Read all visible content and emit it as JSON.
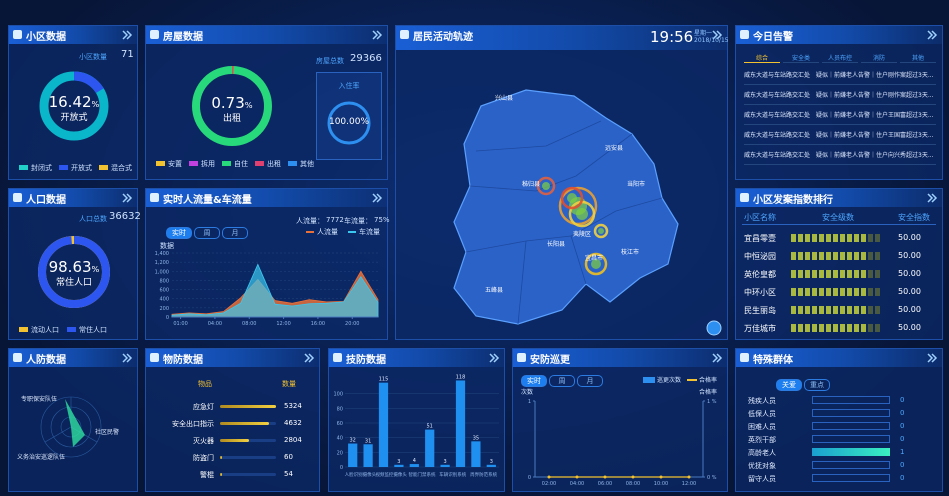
{
  "community": {
    "title": "小区数据",
    "count_label": "小区数量",
    "count": 71,
    "rate": 16.42,
    "rate_unit": "%",
    "rate_caption": "开放式",
    "legend": [
      "封闭式",
      "开放式",
      "混合式"
    ]
  },
  "house": {
    "title": "房屋数据",
    "total_label": "房屋总数",
    "total": 29366,
    "rate": 0.73,
    "rate_unit": "%",
    "rate_caption": "出租",
    "occupancy_label": "入住率",
    "occupancy": {
      "value": 100,
      "label": "100.00%"
    },
    "legend": [
      "安置",
      "拆用",
      "自住",
      "出租",
      "其他"
    ]
  },
  "population": {
    "title": "人口数据",
    "total_label": "人口总数",
    "total": 36632,
    "rate": 98.63,
    "rate_unit": "%",
    "rate_caption": "常住人口",
    "legend": [
      "流动人口",
      "常住人口"
    ]
  },
  "flow": {
    "title": "实时人流量&车流量",
    "people_label": "人流量：",
    "people": 7772,
    "car_label": "车流量：",
    "car": {
      "value": 75,
      "label": "75%"
    },
    "tabs": [
      "实时",
      "周",
      "月"
    ],
    "axis_label": "数据",
    "x": [
      0,
      2,
      4,
      6,
      8,
      10,
      12,
      14,
      16,
      18,
      20,
      22,
      24
    ],
    "xlim": [
      0,
      24
    ],
    "xticks": [
      {
        "value": 1,
        "label": "01:00"
      },
      {
        "value": 5,
        "label": "04:00"
      },
      {
        "value": 9,
        "label": "08:00"
      },
      {
        "value": 13,
        "label": "12:00"
      },
      {
        "value": 17,
        "label": "16:00"
      },
      {
        "value": 21,
        "label": "20:00"
      }
    ],
    "ylim": [
      0,
      1400
    ],
    "yticks": [
      0,
      200,
      400,
      600,
      800,
      {
        "value": 1000,
        "label": "1,000"
      },
      {
        "value": 1200,
        "label": "1,200"
      },
      {
        "value": 1400,
        "label": "1,400"
      }
    ],
    "series": [
      {
        "name": "人流量",
        "color": "#e8703a",
        "values": [
          60,
          90,
          70,
          120,
          420,
          820,
          360,
          300,
          380,
          330,
          340,
          1000,
          380
        ]
      },
      {
        "name": "车流量",
        "color": "#3ac8f0",
        "values": [
          40,
          70,
          50,
          90,
          300,
          1150,
          280,
          240,
          290,
          300,
          330,
          880,
          320
        ]
      }
    ]
  },
  "map": {
    "title": "居民活动轨迹",
    "time": "19:56",
    "weekday": "星期一",
    "date": "2018/10/15",
    "places": [
      "兴山县",
      "远安县",
      "秭归县",
      "当阳市",
      "夷陵区",
      "长阳县",
      "宜昌市",
      "枝江市",
      "五峰县"
    ]
  },
  "alarm": {
    "title": "今日告警",
    "tabs": [
      "综合",
      "安全类",
      "人员布控",
      "消防",
      "其他"
    ],
    "rows": [
      "威东大道与车站路交汇处　疑似｜前嫌老人告警｜住户刚作案超过3天...",
      "威东大道与车站路交汇处　疑似｜前嫌老人告警｜住户刚作案超过3天...",
      "威东大道与车站路交汇处　疑似｜前嫌老人告警｜住户王国富超过3天...",
      "威东大道与车站路交汇处　疑似｜前嫌老人告警｜住户王国富超过3天...",
      "威东大道与车站路交汇处　疑似｜前嫌老人告警｜住户向兴秀超过3天..."
    ]
  },
  "ranking": {
    "title": "小区发案指数排行",
    "headers": [
      "小区名称",
      "安全级数",
      "安全指数"
    ],
    "rows": [
      {
        "name": "宜昌零壹",
        "index": {
          "value": 50,
          "label": "50.00"
        }
      },
      {
        "name": "中恒泌园",
        "index": {
          "value": 50,
          "label": "50.00"
        }
      },
      {
        "name": "英伦皇都",
        "index": {
          "value": 50,
          "label": "50.00"
        }
      },
      {
        "name": "中环小区",
        "index": {
          "value": 50,
          "label": "50.00"
        }
      },
      {
        "name": "民生丽岛",
        "index": {
          "value": 50,
          "label": "50.00"
        }
      },
      {
        "name": "万佳城市",
        "index": {
          "value": 50,
          "label": "50.00"
        }
      }
    ]
  },
  "civil": {
    "title": "人防数据",
    "labels": [
      "专职保安队伍",
      "社区民警",
      "义务治安巡逻队伍"
    ]
  },
  "material": {
    "title": "物防数据",
    "headers": [
      "物品",
      "数量"
    ],
    "rows": [
      {
        "name": "应急灯",
        "value": 5324
      },
      {
        "name": "安全出口指示",
        "value": 4632
      },
      {
        "name": "灭火器",
        "value": 2804
      },
      {
        "name": "防盗门",
        "value": 60
      },
      {
        "name": "警棍",
        "value": 54
      }
    ]
  },
  "tech": {
    "title": "技防数据",
    "categories": [
      "人脸识别摄像头",
      "视频监控摄像头",
      "智能门禁系统",
      "车辆识别系统",
      "周界防范系统"
    ],
    "values": [
      32,
      31,
      115,
      3,
      4,
      51,
      3,
      118,
      35,
      3
    ],
    "ylim": [
      0,
      120
    ],
    "yticks": [
      0,
      20,
      40,
      60,
      80,
      100
    ],
    "color": "#1f8ff0"
  },
  "patrol": {
    "title": "安防巡更",
    "tabs": [
      "实时",
      "周",
      "月"
    ],
    "legend": [
      "巡更次数",
      "合格率"
    ],
    "left_label": "次数",
    "right_label": "合格率",
    "categories": [
      "02:00",
      "04:00",
      "06:00",
      "08:00",
      "10:00",
      "12:00"
    ],
    "counts": [
      0,
      0,
      0,
      0,
      0,
      0
    ],
    "rates": [
      0,
      0,
      0,
      0,
      0,
      0
    ],
    "ylim": [
      0,
      1
    ],
    "yticks": [
      0,
      1
    ],
    "y2lim": [
      0,
      1
    ],
    "y2ticks": [
      {
        "value": 0,
        "label": "0 %"
      },
      {
        "value": 1,
        "label": "1 %"
      }
    ]
  },
  "special": {
    "title": "特殊群体",
    "tabs": [
      "关爱",
      "重点"
    ],
    "rows": [
      {
        "name": "残疾人员",
        "value": 0
      },
      {
        "name": "低保人员",
        "value": 0
      },
      {
        "name": "困难人员",
        "value": 0
      },
      {
        "name": "英烈干部",
        "value": 0
      },
      {
        "name": "高龄老人",
        "value": 1
      },
      {
        "name": "优抚对象",
        "value": 0
      },
      {
        "name": "留守人员",
        "value": 0
      }
    ]
  }
}
